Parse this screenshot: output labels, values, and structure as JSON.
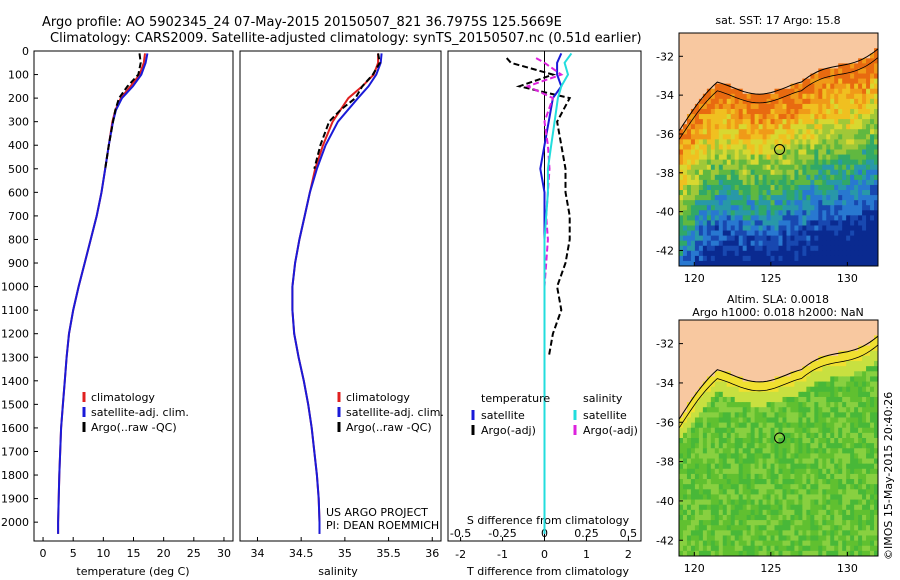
{
  "header": {
    "line1": "Argo profile: AO 5902345_24 07-May-2015 20150507_821 36.7975S 125.5669E",
    "line2": "Climatology: CARS2009. Satellite-adjusted climatology: synTS_20150507.nc (0.51d earlier)"
  },
  "colors": {
    "clim": "#e02020",
    "sat": "#1a1ad8",
    "argo": "#000000",
    "sal_sat": "#22dddd",
    "sal_argo": "#dd22dd",
    "land": "#f8c8a0"
  },
  "chart_data": [
    {
      "type": "line",
      "id": "temperature",
      "xlabel": "temperature (deg C)",
      "ylabel": "depth",
      "xlim": [
        -1.5,
        31.5
      ],
      "ylim": [
        0,
        2080
      ],
      "xticks": [
        0,
        5,
        10,
        15,
        20,
        25,
        30
      ],
      "yticks": [
        0,
        100,
        200,
        300,
        400,
        500,
        600,
        700,
        800,
        900,
        1000,
        1100,
        1200,
        1300,
        1400,
        1500,
        1600,
        1700,
        1800,
        1900,
        2000
      ],
      "legend": [
        "climatology",
        "satellite-adj. clim.",
        "Argo(..raw -QC)"
      ],
      "series": [
        {
          "name": "climatology",
          "color": "#e02020",
          "depth": [
            10,
            50,
            100,
            150,
            200,
            250,
            300,
            400,
            500,
            600,
            700,
            800,
            900,
            1000,
            1100,
            1200,
            1300,
            1400,
            1500,
            1600,
            1800,
            2000,
            2050
          ],
          "values": [
            16.9,
            16.7,
            16.0,
            14.5,
            12.9,
            12.0,
            11.5,
            10.9,
            10.3,
            9.7,
            8.9,
            7.9,
            6.9,
            5.9,
            5.0,
            4.3,
            3.9,
            3.6,
            3.3,
            3.0,
            2.7,
            2.5,
            2.5
          ]
        },
        {
          "name": "satellite-adj. clim.",
          "color": "#1a1ad8",
          "depth": [
            10,
            50,
            100,
            150,
            200,
            250,
            300,
            400,
            500,
            600,
            700,
            800,
            900,
            1000,
            1100,
            1200,
            1300,
            1400,
            1500,
            1600,
            1800,
            2000,
            2050
          ],
          "values": [
            17.3,
            17.0,
            16.3,
            14.9,
            13.1,
            12.1,
            11.6,
            10.9,
            10.3,
            9.7,
            8.9,
            7.9,
            6.9,
            5.9,
            5.0,
            4.3,
            3.9,
            3.6,
            3.3,
            3.0,
            2.7,
            2.5,
            2.5
          ]
        },
        {
          "name": "Argo(..raw -QC)",
          "color": "#000000",
          "depth": [
            10,
            50,
            100,
            150,
            200,
            250,
            300,
            400,
            500
          ],
          "values": [
            16.0,
            16.2,
            15.8,
            14.0,
            12.6,
            12.0,
            11.6,
            10.9,
            10.3
          ]
        }
      ]
    },
    {
      "type": "line",
      "id": "salinity",
      "xlabel": "salinity",
      "xlim": [
        33.8,
        36.1
      ],
      "ylim": [
        0,
        2080
      ],
      "xticks": [
        34,
        34.5,
        35,
        35.5,
        36
      ],
      "legend": [
        "climatology",
        "satellite-adj. clim.",
        "Argo(..raw -QC)"
      ],
      "annotation": [
        "US ARGO PROJECT",
        "PI: DEAN ROEMMICH"
      ],
      "series": [
        {
          "name": "climatology",
          "color": "#e02020",
          "depth": [
            10,
            50,
            100,
            150,
            200,
            300,
            400,
            500,
            600,
            700,
            800,
            900,
            1000,
            1100,
            1200,
            1300,
            1400,
            1500,
            1600,
            1700,
            1800,
            1900,
            2000,
            2050
          ],
          "values": [
            35.38,
            35.38,
            35.33,
            35.2,
            35.04,
            34.86,
            34.75,
            34.66,
            34.6,
            34.54,
            34.48,
            34.43,
            34.4,
            34.4,
            34.42,
            34.47,
            34.53,
            34.58,
            34.62,
            34.65,
            34.68,
            34.7,
            34.71,
            34.71
          ]
        },
        {
          "name": "satellite-adj. clim.",
          "color": "#1a1ad8",
          "depth": [
            10,
            50,
            100,
            150,
            200,
            300,
            400,
            500,
            600,
            700,
            800,
            900,
            1000,
            1100,
            1200,
            1300,
            1400,
            1500,
            1600,
            1700,
            1800,
            1900,
            2000,
            2050
          ],
          "values": [
            35.42,
            35.41,
            35.36,
            35.27,
            35.15,
            34.92,
            34.78,
            34.68,
            34.6,
            34.54,
            34.48,
            34.43,
            34.4,
            34.4,
            34.42,
            34.47,
            34.53,
            34.58,
            34.62,
            34.65,
            34.68,
            34.7,
            34.71,
            34.71
          ]
        },
        {
          "name": "Argo(..raw -QC)",
          "color": "#000000",
          "depth": [
            10,
            50,
            100,
            150,
            200,
            250,
            300,
            400,
            500
          ],
          "values": [
            35.38,
            35.4,
            35.32,
            35.2,
            35.12,
            34.95,
            34.82,
            34.72,
            34.65
          ]
        }
      ]
    },
    {
      "type": "line",
      "id": "differences",
      "xlabel": "T difference from climatology",
      "xlabel_top": "S difference from climatology",
      "xlim": [
        -2.3,
        2.3
      ],
      "ylim": [
        0,
        2080
      ],
      "xticks_T": [
        -2,
        -1,
        0,
        1,
        2
      ],
      "xticks_S": [
        -0.5,
        -0.25,
        0,
        0.25,
        0.5
      ],
      "legend_titles": [
        "temperature",
        "salinity"
      ],
      "legend": [
        "satellite",
        "Argo(-adj)",
        "satellite",
        "Argo(-adj)"
      ],
      "series": [
        {
          "name": "temperature satellite",
          "color": "#1a1ad8",
          "depth": [
            10,
            50,
            100,
            150,
            200,
            300,
            400,
            500,
            600,
            800,
            1000,
            1200,
            1400,
            1600,
            1800,
            2050
          ],
          "values": [
            0.4,
            0.3,
            0.3,
            0.4,
            0.2,
            0.1,
            0.0,
            -0.1,
            0.0,
            0.0,
            0.0,
            0.0,
            0.0,
            0.0,
            0.0,
            0.0
          ]
        },
        {
          "name": "temperature Argo(-adj)",
          "color": "#000000",
          "depth": [
            30,
            50,
            100,
            150,
            200,
            300,
            400,
            500,
            600,
            700,
            800,
            900,
            1000,
            1100,
            1200,
            1300
          ],
          "values": [
            -0.9,
            -0.8,
            0.2,
            -0.6,
            0.6,
            0.3,
            0.4,
            0.5,
            0.5,
            0.6,
            0.6,
            0.5,
            0.3,
            0.4,
            0.2,
            0.1
          ]
        },
        {
          "name": "salinity satellite",
          "color": "#22dddd",
          "depth": [
            10,
            50,
            100,
            150,
            200,
            300,
            400,
            500,
            600,
            800,
            1000,
            1200,
            1400,
            1600,
            1800,
            2050
          ],
          "values": [
            0.16,
            0.12,
            0.14,
            0.1,
            0.08,
            0.06,
            0.04,
            0.02,
            0.02,
            0.0,
            0.0,
            0.0,
            0.0,
            0.0,
            0.0,
            0.0
          ]
        },
        {
          "name": "salinity Argo(-adj)",
          "color": "#dd22dd",
          "depth": [
            30,
            50,
            100,
            150,
            200,
            300,
            400,
            500,
            600,
            700,
            800,
            900,
            1000,
            1100
          ],
          "values": [
            -0.05,
            0.0,
            0.1,
            -0.1,
            0.05,
            0.0,
            0.02,
            0.03,
            0.02,
            0.01,
            0.02,
            0.01,
            0.0,
            0.0
          ]
        }
      ]
    },
    {
      "type": "heatmap",
      "id": "sst_map",
      "title": "sat. SST: 17 Argo: 15.8",
      "xlim": [
        119,
        132
      ],
      "ylim": [
        -42.8,
        -30.8
      ],
      "xticks": [
        120,
        125,
        130
      ],
      "yticks": [
        -32,
        -34,
        -36,
        -38,
        -40,
        -42
      ],
      "argo_lon": 125.57,
      "argo_lat": -36.8
    },
    {
      "type": "heatmap",
      "id": "sla_map",
      "title_lines": [
        "Altim. SLA: 0.0018",
        "Argo h1000: 0.018 h2000: NaN"
      ],
      "xlim": [
        119,
        132
      ],
      "ylim": [
        -42.8,
        -30.8
      ],
      "xticks": [
        120,
        125,
        130
      ],
      "yticks": [
        -32,
        -34,
        -36,
        -38,
        -40,
        -42
      ],
      "argo_lon": 125.57,
      "argo_lat": -36.8
    }
  ],
  "footer": {
    "credit": "©IMOS 15-May-2015 20:40:26"
  }
}
